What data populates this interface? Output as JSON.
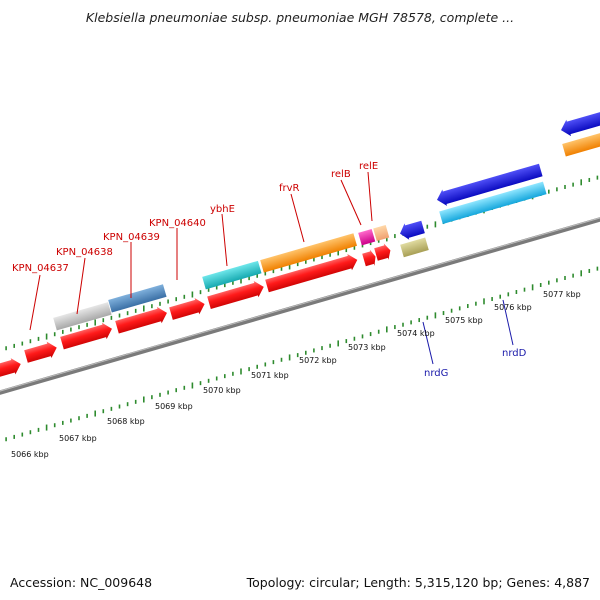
{
  "header": {
    "title": "Klebsiella pneumoniae subsp. pneumoniae MGH 78578, complete ..."
  },
  "footer": {
    "accession": "Accession: NC_009648",
    "topology": "Topology: circular; Length: 5,315,120 bp; Genes: 4,887"
  },
  "scale_labels": [
    "5066 kbp",
    "5067 kbp",
    "5068 kbp",
    "5069 kbp",
    "5070 kbp",
    "5071 kbp",
    "5072 kbp",
    "5073 kbp",
    "5074 kbp",
    "5075 kbp",
    "5076 kbp",
    "5077 kbp"
  ],
  "forward_gene_labels": [
    "KPN_04637",
    "KPN_04638",
    "KPN_04639",
    "KPN_04640",
    "ybhE",
    "frvR",
    "relB",
    "relE"
  ],
  "reverse_gene_labels": [
    "nrdG",
    "nrdD"
  ],
  "colors": {
    "backbone": "#8a8a8a",
    "ticks": "#2e8b2e",
    "cds": "#ff1a1a",
    "forward_label": "#cc0000",
    "reverse_label": "#1a1aaa",
    "gray_feature": "#c4c4c4",
    "steelblue_feature": "#4f86bd",
    "cyan_feature": "#26c9cf",
    "orange_feature": "#ff9a1a",
    "magenta_feature": "#ee22aa",
    "khaki_feature": "#c8c07a",
    "blue_feature": "#1f1fe0",
    "lightblue_feature": "#33c8f2"
  }
}
